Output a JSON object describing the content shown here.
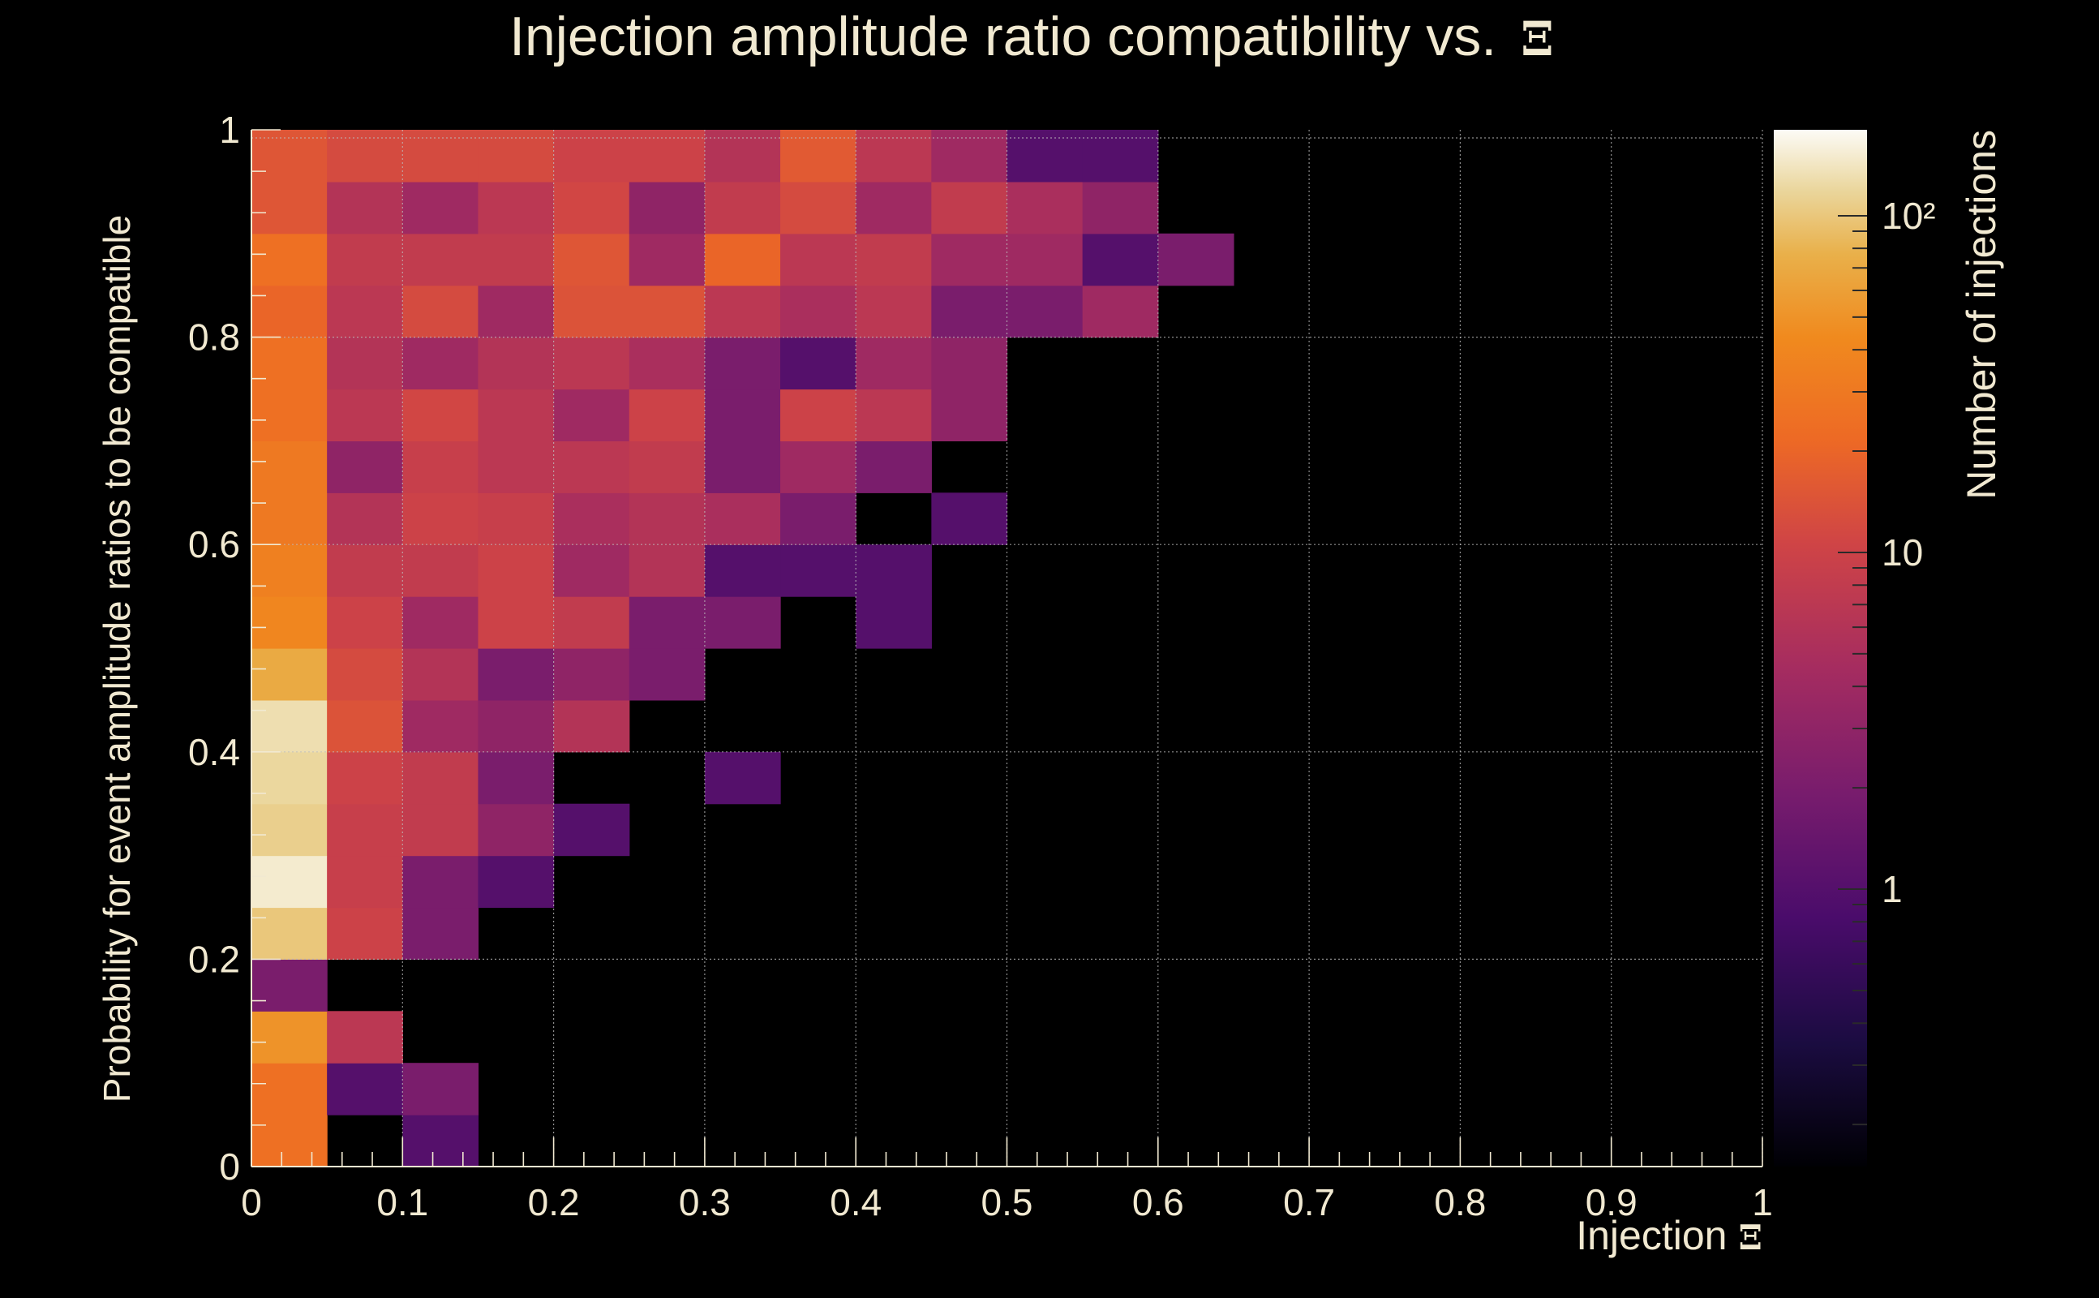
{
  "chart_data": {
    "type": "heatmap",
    "title": "Injection amplitude ratio compatibility vs.",
    "title_symbol": "Ξ",
    "xlabel": "Injection",
    "xlabel_symbol": "Ξ",
    "ylabel": "Probability for event amplitude ratios to be compatible",
    "xlim": [
      0,
      1
    ],
    "ylim": [
      0,
      1
    ],
    "x_bin_width": 0.05,
    "y_bin_width": 0.05,
    "x_ticks": [
      "0",
      "0.1",
      "0.2",
      "0.3",
      "0.4",
      "0.5",
      "0.6",
      "0.7",
      "0.8",
      "0.9",
      "1"
    ],
    "y_ticks": [
      "0",
      "0.2",
      "0.4",
      "0.6",
      "0.8",
      "1"
    ],
    "grid": true,
    "colorbar": {
      "label": "Number of injections",
      "scale": "log",
      "range": [
        0.15,
        180
      ],
      "tick_labels": [
        {
          "value": 1,
          "label": "1"
        },
        {
          "value": 10,
          "label": "10"
        },
        {
          "value": 100,
          "label": "10²"
        }
      ]
    },
    "colors": {
      "background": "#000000",
      "text": "#f1e9d1",
      "grid": "#bdbdbd"
    },
    "counts_note": "rows ordered from y=0.00-0.05 (row 0) to y=0.95-1.00 (row 19); columns from x=0.00-0.05 onward; 0 = empty",
    "counts": [
      [
        25,
        0,
        1,
        0,
        0,
        0,
        0,
        0,
        0,
        0,
        0,
        0,
        0
      ],
      [
        25,
        1,
        2,
        0,
        0,
        0,
        0,
        0,
        0,
        0,
        0,
        0,
        0
      ],
      [
        50,
        7,
        0,
        0,
        0,
        0,
        0,
        0,
        0,
        0,
        0,
        0,
        0
      ],
      [
        2,
        0,
        0,
        0,
        0,
        0,
        0,
        0,
        0,
        0,
        0,
        0,
        0
      ],
      [
        100,
        10,
        2,
        0,
        0,
        0,
        0,
        0,
        0,
        0,
        0,
        0,
        0
      ],
      [
        150,
        9,
        2,
        1,
        0,
        0,
        0,
        0,
        0,
        0,
        0,
        0,
        0
      ],
      [
        110,
        9,
        8,
        3,
        1,
        0,
        0,
        0,
        0,
        0,
        0,
        0,
        0
      ],
      [
        120,
        10,
        8,
        2,
        0,
        0,
        1,
        0,
        0,
        0,
        0,
        0,
        0
      ],
      [
        130,
        14,
        4,
        3,
        6,
        0,
        0,
        0,
        0,
        0,
        0,
        0,
        0
      ],
      [
        70,
        12,
        6,
        2,
        3,
        2,
        0,
        0,
        0,
        0,
        0,
        0,
        0
      ],
      [
        40,
        10,
        4,
        10,
        8,
        2,
        2,
        0,
        1,
        0,
        0,
        0,
        0
      ],
      [
        35,
        8,
        8,
        10,
        4,
        6,
        1,
        1,
        1,
        0,
        0,
        0,
        0
      ],
      [
        30,
        6,
        10,
        9,
        5,
        6,
        5,
        2,
        0,
        1,
        0,
        0,
        0
      ],
      [
        30,
        3,
        9,
        7,
        7,
        8,
        2,
        4,
        2,
        0,
        0,
        0,
        0
      ],
      [
        25,
        7,
        11,
        7,
        4,
        10,
        2,
        10,
        7,
        3,
        0,
        0,
        0
      ],
      [
        25,
        6,
        4,
        6,
        7,
        5,
        2,
        1,
        4,
        3,
        0,
        0,
        0
      ],
      [
        20,
        7,
        12,
        4,
        14,
        14,
        7,
        5,
        7,
        2,
        2,
        4,
        0
      ],
      [
        25,
        8,
        8,
        8,
        15,
        4,
        20,
        7,
        8,
        4,
        4,
        1,
        2
      ],
      [
        15,
        6,
        4,
        7,
        11,
        3,
        8,
        12,
        4,
        8,
        5,
        3,
        0
      ],
      [
        15,
        12,
        12,
        12,
        10,
        10,
        6,
        16,
        7,
        4,
        1,
        1,
        0
      ]
    ]
  }
}
